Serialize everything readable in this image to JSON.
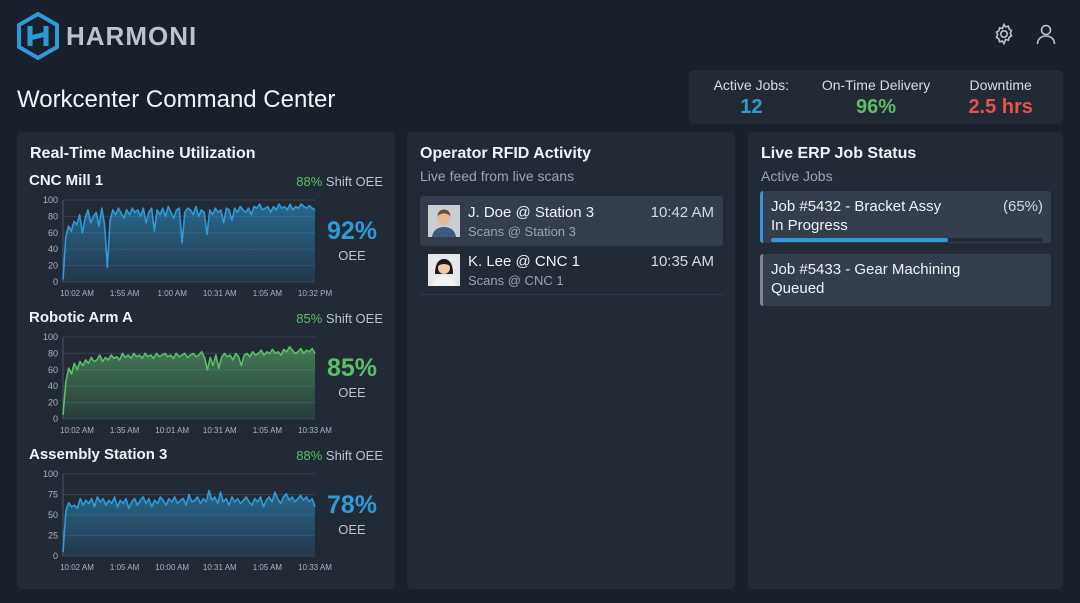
{
  "app": {
    "name": "HARMONI"
  },
  "header": {
    "title": "Workcenter Command Center",
    "icons": [
      "gear-icon",
      "user-icon"
    ]
  },
  "kpis": [
    {
      "label": "Active Jobs:",
      "value": "12",
      "color": "#2e9bd9"
    },
    {
      "label": "On-Time Delivery",
      "value": "96%",
      "color": "#5cbd6a"
    },
    {
      "label": "Downtime",
      "value": "2.5 hrs",
      "color": "#e6524c"
    }
  ],
  "utilization": {
    "title": "Real-Time Machine Utilization",
    "machines": [
      {
        "name": "CNC Mill 1",
        "shift_pct": "88%",
        "shift_label": "Shift OEE",
        "oee": "92%",
        "oee_label": "OEE",
        "color": "#2e9bd9",
        "chart_data": {
          "type": "area",
          "yticks": [
            "100",
            "80",
            "60",
            "40",
            "20",
            "0"
          ],
          "ylim": [
            0,
            100
          ],
          "xticks": [
            "10:02 AM",
            "1:55 AM",
            "1:00 AM",
            "10:31 AM",
            "1:05 AM",
            "10:32 PM"
          ],
          "values": [
            3,
            55,
            68,
            62,
            74,
            70,
            82,
            60,
            78,
            88,
            72,
            80,
            85,
            68,
            90,
            70,
            18,
            75,
            88,
            82,
            90,
            84,
            78,
            88,
            82,
            90,
            85,
            88,
            80,
            90,
            72,
            85,
            90,
            62,
            88,
            82,
            90,
            80,
            92,
            85,
            78,
            88,
            90,
            48,
            85,
            90,
            88,
            82,
            92,
            80,
            88,
            85,
            58,
            88,
            82,
            90,
            85,
            88,
            72,
            90,
            88,
            75,
            90,
            85,
            92,
            88,
            85,
            90,
            82,
            92,
            90,
            95,
            88,
            90,
            92,
            85,
            92,
            88,
            95,
            90,
            92,
            88,
            95,
            88,
            92,
            90,
            95,
            92,
            90,
            93,
            90,
            88
          ]
        }
      },
      {
        "name": "Robotic Arm A",
        "shift_pct": "85%",
        "shift_label": "Shift OEE",
        "oee": "85%",
        "oee_label": "OEE",
        "color": "#5cbd6a",
        "chart_data": {
          "type": "area",
          "yticks": [
            "100",
            "80",
            "60",
            "40",
            "20",
            "0"
          ],
          "ylim": [
            0,
            100
          ],
          "xticks": [
            "10:02 AM",
            "1:35 AM",
            "10:01 AM",
            "10:31 AM",
            "1:05 AM",
            "10:33 AM"
          ],
          "values": [
            5,
            45,
            62,
            55,
            68,
            60,
            70,
            65,
            72,
            68,
            75,
            70,
            72,
            78,
            70,
            75,
            72,
            78,
            74,
            76,
            72,
            80,
            75,
            78,
            74,
            80,
            76,
            78,
            74,
            80,
            76,
            78,
            74,
            80,
            76,
            78,
            80,
            76,
            78,
            74,
            80,
            76,
            78,
            80,
            75,
            78,
            80,
            76,
            78,
            82,
            75,
            60,
            75,
            65,
            78,
            62,
            75,
            80,
            76,
            78,
            72,
            80,
            76,
            65,
            78,
            80,
            76,
            82,
            78,
            80,
            84,
            78,
            82,
            80,
            85,
            80,
            82,
            78,
            85,
            82,
            88,
            84,
            80,
            82,
            86,
            80,
            84,
            82,
            86,
            80
          ]
        }
      },
      {
        "name": "Assembly Station 3",
        "shift_pct": "88%",
        "shift_label": "Shift OEE",
        "oee": "78%",
        "oee_label": "OEE",
        "color": "#2e9bd9",
        "chart_data": {
          "type": "area",
          "yticks": [
            "100",
            "75",
            "50",
            "25",
            "0"
          ],
          "ylim": [
            0,
            100
          ],
          "xticks": [
            "10:02 AM",
            "1:05 AM",
            "10:00 AM",
            "10:31 AM",
            "1:05 AM",
            "10:33 AM"
          ],
          "values": [
            5,
            55,
            65,
            60,
            62,
            58,
            70,
            62,
            68,
            64,
            70,
            60,
            72,
            66,
            70,
            62,
            68,
            64,
            72,
            60,
            68,
            64,
            70,
            58,
            66,
            70,
            62,
            68,
            72,
            64,
            70,
            60,
            68,
            64,
            72,
            68,
            62,
            70,
            66,
            72,
            64,
            68,
            70,
            62,
            75,
            66,
            68,
            72,
            64,
            70,
            66,
            80,
            68,
            72,
            64,
            78,
            66,
            70,
            62,
            72,
            66,
            70,
            64,
            68,
            72,
            66,
            62,
            70,
            66,
            72,
            60,
            68,
            72,
            66,
            78,
            70,
            64,
            72,
            76,
            68,
            72,
            66,
            70,
            74,
            68,
            72,
            66,
            70,
            60
          ]
        }
      }
    ]
  },
  "rfid": {
    "title": "Operator RFID Activity",
    "subtitle": "Live feed from live scans",
    "items": [
      {
        "name": "J. Doe @ Station 3",
        "scan": "Scans @ Station 3",
        "time": "10:42 AM"
      },
      {
        "name": "K. Lee @ CNC 1",
        "scan": "Scans @ CNC 1",
        "time": "10:35 AM"
      }
    ]
  },
  "erp": {
    "title": "Live ERP Job Status",
    "subtitle": "Active Jobs",
    "jobs": [
      {
        "name": "Job #5432 - Bracket Assy",
        "pct": "(65%)",
        "status": "In Progress",
        "progress": 0.65
      },
      {
        "name": "Job #5433 - Gear Machining",
        "status": "Queued"
      }
    ]
  }
}
